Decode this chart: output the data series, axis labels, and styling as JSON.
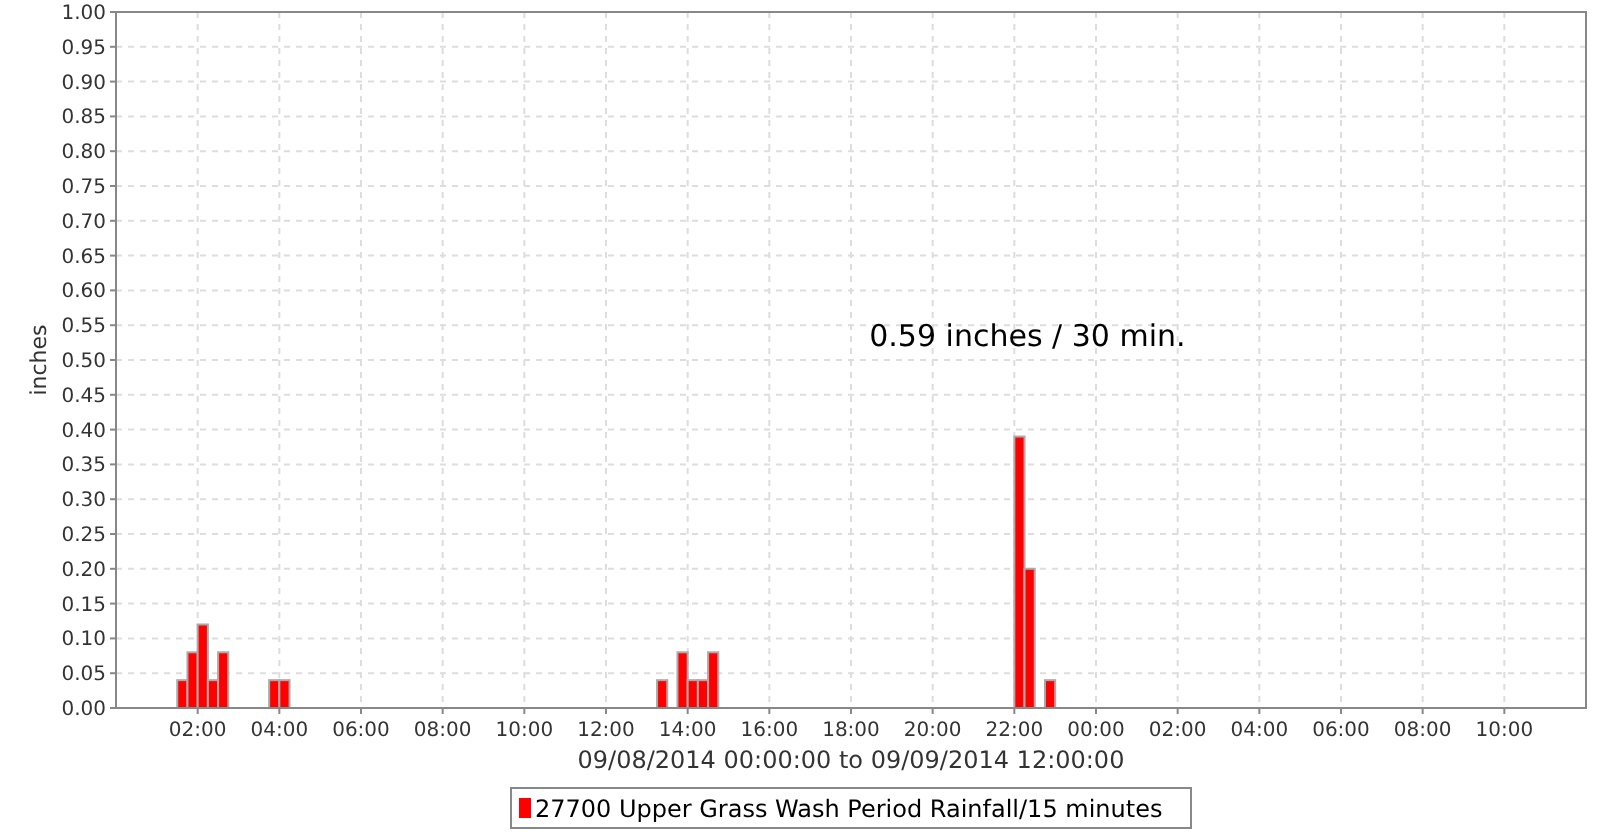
{
  "chart_data": {
    "type": "bar",
    "xlabel": "09/08/2014 00:00:00 to 09/09/2014 12:00:00",
    "ylabel": "inches",
    "x": [
      "2014-09-08T01:30",
      "2014-09-08T01:45",
      "2014-09-08T02:00",
      "2014-09-08T02:15",
      "2014-09-08T02:30",
      "2014-09-08T03:45",
      "2014-09-08T04:00",
      "2014-09-08T13:15",
      "2014-09-08T13:45",
      "2014-09-08T14:00",
      "2014-09-08T14:15",
      "2014-09-08T14:30",
      "2014-09-08T22:00",
      "2014-09-08T22:15",
      "2014-09-08T22:45"
    ],
    "series": [
      {
        "name": "27700 Upper Grass Wash Period Rainfall/15 minutes",
        "color": "#ff0000",
        "values": [
          0.04,
          0.08,
          0.12,
          0.04,
          0.08,
          0.04,
          0.04,
          0.04,
          0.08,
          0.04,
          0.04,
          0.08,
          0.39,
          0.2,
          0.04
        ]
      }
    ],
    "xlim": [
      "2014-09-08T00:00",
      "2014-09-09T12:00"
    ],
    "xticks": [
      {
        "value": "2014-09-08T02:00",
        "label": "02:00"
      },
      {
        "value": "2014-09-08T04:00",
        "label": "04:00"
      },
      {
        "value": "2014-09-08T06:00",
        "label": "06:00"
      },
      {
        "value": "2014-09-08T08:00",
        "label": "08:00"
      },
      {
        "value": "2014-09-08T10:00",
        "label": "10:00"
      },
      {
        "value": "2014-09-08T12:00",
        "label": "12:00"
      },
      {
        "value": "2014-09-08T14:00",
        "label": "14:00"
      },
      {
        "value": "2014-09-08T16:00",
        "label": "16:00"
      },
      {
        "value": "2014-09-08T18:00",
        "label": "18:00"
      },
      {
        "value": "2014-09-08T20:00",
        "label": "20:00"
      },
      {
        "value": "2014-09-08T22:00",
        "label": "22:00"
      },
      {
        "value": "2014-09-09T00:00",
        "label": "00:00"
      },
      {
        "value": "2014-09-09T02:00",
        "label": "02:00"
      },
      {
        "value": "2014-09-09T04:00",
        "label": "04:00"
      },
      {
        "value": "2014-09-09T06:00",
        "label": "06:00"
      },
      {
        "value": "2014-09-09T08:00",
        "label": "08:00"
      },
      {
        "value": "2014-09-09T10:00",
        "label": "10:00"
      }
    ],
    "ylim": [
      0,
      1
    ],
    "yticks": [
      {
        "value": 0,
        "label": "0.00"
      },
      {
        "value": 0.05,
        "label": "0.05"
      },
      {
        "value": 0.1,
        "label": "0.10"
      },
      {
        "value": 0.15,
        "label": "0.15"
      },
      {
        "value": 0.2,
        "label": "0.20"
      },
      {
        "value": 0.25,
        "label": "0.25"
      },
      {
        "value": 0.3,
        "label": "0.30"
      },
      {
        "value": 0.35,
        "label": "0.35"
      },
      {
        "value": 0.4,
        "label": "0.40"
      },
      {
        "value": 0.45,
        "label": "0.45"
      },
      {
        "value": 0.5,
        "label": "0.50"
      },
      {
        "value": 0.55,
        "label": "0.55"
      },
      {
        "value": 0.6,
        "label": "0.60"
      },
      {
        "value": 0.65,
        "label": "0.65"
      },
      {
        "value": 0.7,
        "label": "0.70"
      },
      {
        "value": 0.75,
        "label": "0.75"
      },
      {
        "value": 0.8,
        "label": "0.80"
      },
      {
        "value": 0.85,
        "label": "0.85"
      },
      {
        "value": 0.9,
        "label": "0.90"
      },
      {
        "value": 0.95,
        "label": "0.95"
      },
      {
        "value": 1,
        "label": "1.00"
      }
    ],
    "annotations": [
      "0.59 inches / 30 min."
    ],
    "grid": true,
    "legend": "bottom"
  }
}
